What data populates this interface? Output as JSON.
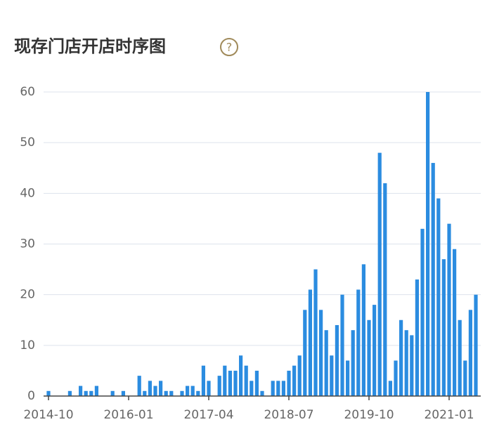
{
  "chart_data": {
    "type": "bar",
    "title": "现存门店开店时序图",
    "categories": [
      "2014-10",
      null,
      null,
      null,
      null,
      null,
      null,
      null,
      null,
      null,
      null,
      null,
      null,
      null,
      null,
      "2016-01",
      null,
      null,
      null,
      null,
      null,
      null,
      null,
      null,
      null,
      null,
      null,
      null,
      null,
      null,
      "2017-04",
      null,
      null,
      null,
      null,
      null,
      null,
      null,
      null,
      null,
      null,
      null,
      null,
      null,
      null,
      "2018-07",
      null,
      null,
      null,
      null,
      null,
      null,
      null,
      null,
      null,
      null,
      null,
      null,
      null,
      null,
      "2019-10",
      null,
      null,
      null,
      null,
      null,
      null,
      null,
      null,
      null,
      null,
      null,
      null,
      null,
      null,
      "2021-01",
      null,
      null,
      null,
      null,
      null
    ],
    "values": [
      1,
      0,
      0,
      0,
      1,
      0,
      2,
      1,
      1,
      2,
      0,
      0,
      1,
      0,
      1,
      0,
      0,
      4,
      1,
      3,
      2,
      3,
      1,
      1,
      0,
      1,
      2,
      2,
      1,
      6,
      3,
      0,
      4,
      6,
      5,
      5,
      8,
      6,
      3,
      5,
      1,
      0,
      3,
      3,
      3,
      5,
      6,
      8,
      17,
      21,
      25,
      17,
      13,
      8,
      14,
      20,
      7,
      13,
      21,
      26,
      15,
      18,
      48,
      42,
      3,
      7,
      15,
      13,
      12,
      23,
      33,
      60,
      46,
      39,
      27,
      34,
      29,
      15,
      7,
      17,
      20
    ],
    "color": "#2b8ce0",
    "ylim": [
      0,
      60
    ],
    "yticks": [
      0,
      10,
      20,
      30,
      40,
      50,
      60
    ],
    "grid": true
  }
}
